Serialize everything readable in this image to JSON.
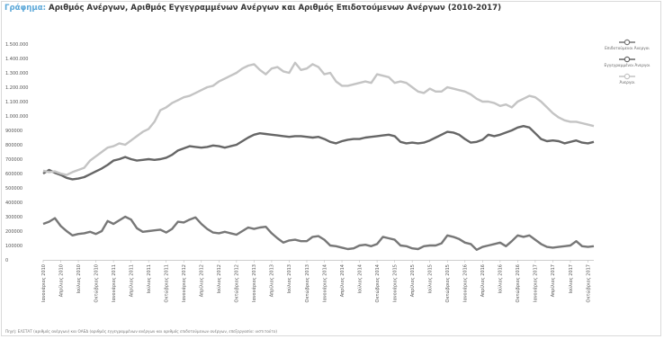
{
  "header": {
    "title_prefix": "Γράφημα:",
    "title_text": "Αριθμός Ανέργων, Αριθμός Εγγεγραμμένων Ανέργων και Αριθμός Επιδοτούμενων Ανέργων (2010-2017)"
  },
  "footer": {
    "source": "Πηγή: ΕΛΣΤΑΤ (αριθμός ανέργων) και ΟΑΕΔ (αριθμός εγγεγραμμένων ανέργων και αριθμός επιδοτούμενων ανέργων, επεξεργασία: ινστιτούτο)"
  },
  "chart_data": {
    "type": "line",
    "ylim": [
      0,
      1500000
    ],
    "yticks": [
      "0",
      "100000",
      "200000",
      "300000",
      "400000",
      "500000",
      "600000",
      "700000",
      "800000",
      "900000",
      "1.000.000",
      "1.100.000",
      "1.200.000",
      "1.300.000",
      "1.400.000",
      "1.500.000"
    ],
    "xticks": [
      {
        "i": 0,
        "label": "Ιανουάριος 2010"
      },
      {
        "i": 3,
        "label": "Απρίλιος 2010"
      },
      {
        "i": 6,
        "label": "Ιούλιος 2010"
      },
      {
        "i": 9,
        "label": "Οκτώβριος 2010"
      },
      {
        "i": 12,
        "label": "Ιανουάριος 2011"
      },
      {
        "i": 15,
        "label": "Απρίλιος 2011"
      },
      {
        "i": 18,
        "label": "Ιούλιος 2011"
      },
      {
        "i": 21,
        "label": "Οκτώβριος 2011"
      },
      {
        "i": 24,
        "label": "Ιανουάριος 2012"
      },
      {
        "i": 27,
        "label": "Απρίλιος 2012"
      },
      {
        "i": 30,
        "label": "Ιούλιος 2012"
      },
      {
        "i": 33,
        "label": "Οκτώβριος 2012"
      },
      {
        "i": 36,
        "label": "Ιανουάριος 2013"
      },
      {
        "i": 39,
        "label": "Απρίλιος 2013"
      },
      {
        "i": 42,
        "label": "Ιούλιος 2013"
      },
      {
        "i": 45,
        "label": "Οκτώβριος 2013"
      },
      {
        "i": 48,
        "label": "Ιανουάριος 2014"
      },
      {
        "i": 51,
        "label": "Απρίλιος 2014"
      },
      {
        "i": 54,
        "label": "Ιούλιος 2014"
      },
      {
        "i": 57,
        "label": "Οκτώβριος 2014"
      },
      {
        "i": 60,
        "label": "Ιανουάριος 2015"
      },
      {
        "i": 63,
        "label": "Απρίλιος 2015"
      },
      {
        "i": 66,
        "label": "Ιούλιος 2015"
      },
      {
        "i": 69,
        "label": "Οκτώβριος 2015"
      },
      {
        "i": 72,
        "label": "Ιανουάριος 2016"
      },
      {
        "i": 75,
        "label": "Απρίλιος 2016"
      },
      {
        "i": 78,
        "label": "Ιούλιος 2016"
      },
      {
        "i": 81,
        "label": "Οκτώβριος 2016"
      },
      {
        "i": 84,
        "label": "Ιανουάριος 2017"
      },
      {
        "i": 87,
        "label": "Απρίλιος 2017"
      },
      {
        "i": 90,
        "label": "Ιούλιος 2017"
      },
      {
        "i": 93,
        "label": "Οκτώβριος 2017"
      }
    ],
    "n_points": 95,
    "grid": false,
    "legend_position": "right",
    "series": [
      {
        "name": "Επιδοτούμενοι Άνεργοι",
        "color": "#777777",
        "values": [
          250000,
          265000,
          290000,
          235000,
          200000,
          170000,
          180000,
          185000,
          195000,
          180000,
          200000,
          270000,
          250000,
          275000,
          300000,
          280000,
          220000,
          195000,
          200000,
          205000,
          210000,
          190000,
          215000,
          265000,
          260000,
          280000,
          295000,
          250000,
          215000,
          190000,
          185000,
          195000,
          185000,
          175000,
          200000,
          225000,
          215000,
          225000,
          230000,
          185000,
          150000,
          120000,
          135000,
          140000,
          130000,
          130000,
          160000,
          165000,
          140000,
          100000,
          95000,
          85000,
          75000,
          80000,
          100000,
          105000,
          95000,
          110000,
          160000,
          150000,
          140000,
          100000,
          95000,
          80000,
          75000,
          95000,
          100000,
          100000,
          115000,
          170000,
          160000,
          145000,
          120000,
          110000,
          70000,
          90000,
          100000,
          110000,
          120000,
          95000,
          130000,
          170000,
          160000,
          170000,
          140000,
          110000,
          90000,
          85000,
          90000,
          95000,
          100000,
          130000,
          95000,
          90000,
          95000
        ]
      },
      {
        "name": "Εγγεγραμμένοι Άνεργοι",
        "color": "#666666",
        "values": [
          600000,
          625000,
          605000,
          590000,
          570000,
          560000,
          565000,
          575000,
          595000,
          615000,
          635000,
          660000,
          690000,
          700000,
          715000,
          700000,
          690000,
          695000,
          700000,
          695000,
          700000,
          710000,
          730000,
          760000,
          775000,
          790000,
          785000,
          780000,
          785000,
          795000,
          790000,
          780000,
          790000,
          800000,
          825000,
          850000,
          870000,
          880000,
          875000,
          870000,
          865000,
          860000,
          855000,
          860000,
          860000,
          855000,
          850000,
          855000,
          840000,
          820000,
          810000,
          825000,
          835000,
          840000,
          840000,
          850000,
          855000,
          860000,
          865000,
          870000,
          860000,
          820000,
          810000,
          815000,
          810000,
          815000,
          830000,
          850000,
          870000,
          890000,
          885000,
          870000,
          840000,
          815000,
          820000,
          835000,
          870000,
          860000,
          870000,
          885000,
          900000,
          920000,
          930000,
          920000,
          880000,
          840000,
          825000,
          830000,
          825000,
          810000,
          820000,
          830000,
          815000,
          810000,
          820000
        ]
      },
      {
        "name": "Άνεργοι",
        "color": "#c4c4c4",
        "values": [
          620000,
          610000,
          615000,
          600000,
          590000,
          610000,
          625000,
          640000,
          690000,
          720000,
          750000,
          780000,
          790000,
          810000,
          800000,
          830000,
          860000,
          890000,
          910000,
          960000,
          1040000,
          1060000,
          1090000,
          1110000,
          1130000,
          1140000,
          1160000,
          1180000,
          1200000,
          1210000,
          1240000,
          1260000,
          1280000,
          1300000,
          1330000,
          1350000,
          1360000,
          1320000,
          1290000,
          1330000,
          1340000,
          1310000,
          1300000,
          1370000,
          1320000,
          1330000,
          1360000,
          1340000,
          1290000,
          1300000,
          1240000,
          1210000,
          1210000,
          1220000,
          1230000,
          1240000,
          1230000,
          1290000,
          1280000,
          1270000,
          1230000,
          1240000,
          1230000,
          1200000,
          1170000,
          1160000,
          1190000,
          1170000,
          1170000,
          1200000,
          1190000,
          1180000,
          1170000,
          1150000,
          1120000,
          1100000,
          1100000,
          1090000,
          1070000,
          1080000,
          1060000,
          1100000,
          1120000,
          1140000,
          1130000,
          1100000,
          1060000,
          1020000,
          990000,
          970000,
          960000,
          960000,
          950000,
          940000,
          930000
        ]
      }
    ]
  }
}
